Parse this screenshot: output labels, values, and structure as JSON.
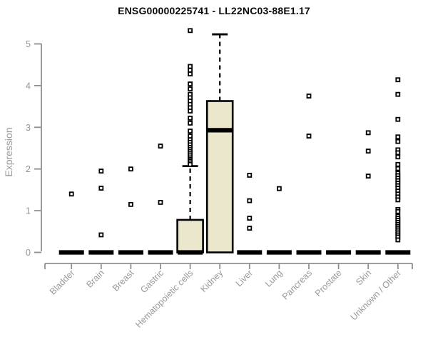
{
  "page": {
    "background": "#ffffff"
  },
  "colors": {
    "box_fill": "#ebe7cc",
    "ink": "#000000",
    "axis": "#8f8f8f",
    "tick_label": "#8f959c",
    "category_label": "#98989a",
    "title": "#0a0a0a",
    "ylabel": "#9a9a9a"
  },
  "chart_data": {
    "type": "boxplot",
    "title": "ENSG00000225741 - LL22NC03-88E1.17",
    "ylabel": "Expression",
    "xlabel": "",
    "ylim": [
      0,
      5.4
    ],
    "yticks": [
      0,
      1,
      2,
      3,
      4,
      5
    ],
    "grid": false,
    "legend": false,
    "categories": [
      "Bladder",
      "Brain",
      "Breast",
      "Gastric",
      "Hematopoietic cells",
      "Kidney",
      "Liver",
      "Lung",
      "Pancreas",
      "Prostate",
      "Skin",
      "Unknown / Other"
    ],
    "boxes": [
      {
        "category": "Bladder",
        "median": 0,
        "q1": 0,
        "q3": 0,
        "whisker_low": 0,
        "whisker_high": 0,
        "outliers": [
          1.4
        ]
      },
      {
        "category": "Brain",
        "median": 0,
        "q1": 0,
        "q3": 0,
        "whisker_low": 0,
        "whisker_high": 0,
        "outliers": [
          1.95,
          1.54,
          0.42
        ]
      },
      {
        "category": "Breast",
        "median": 0,
        "q1": 0,
        "q3": 0,
        "whisker_low": 0,
        "whisker_high": 0,
        "outliers": [
          2.0,
          1.15
        ]
      },
      {
        "category": "Gastric",
        "median": 0,
        "q1": 0,
        "q3": 0,
        "whisker_low": 0,
        "whisker_high": 0,
        "outliers": [
          2.55,
          1.2
        ]
      },
      {
        "category": "Hematopoietic cells",
        "median": 0,
        "q1": 0,
        "q3": 0.78,
        "whisker_low": 0,
        "whisker_high": 2.07,
        "outliers": [
          5.32,
          4.46,
          4.37,
          4.28,
          4.04,
          3.92,
          3.79,
          3.71,
          3.63,
          3.55,
          3.47,
          3.39,
          3.22,
          3.1,
          2.91,
          2.79,
          2.7,
          2.64,
          2.58,
          2.52,
          2.47,
          2.42,
          2.37,
          2.32,
          2.27,
          2.23,
          2.19,
          2.15,
          2.11
        ]
      },
      {
        "category": "Kidney",
        "median": 2.93,
        "q1": 0,
        "q3": 3.63,
        "whisker_low": 0,
        "whisker_high": 5.23,
        "outliers": []
      },
      {
        "category": "Liver",
        "median": 0,
        "q1": 0,
        "q3": 0,
        "whisker_low": 0,
        "whisker_high": 0,
        "outliers": [
          1.85,
          1.24,
          0.82,
          0.58
        ]
      },
      {
        "category": "Lung",
        "median": 0,
        "q1": 0,
        "q3": 0,
        "whisker_low": 0,
        "whisker_high": 0,
        "outliers": [
          1.53
        ]
      },
      {
        "category": "Pancreas",
        "median": 0,
        "q1": 0,
        "q3": 0,
        "whisker_low": 0,
        "whisker_high": 0,
        "outliers": [
          3.75,
          2.79
        ]
      },
      {
        "category": "Prostate",
        "median": 0,
        "q1": 0,
        "q3": 0,
        "whisker_low": 0,
        "whisker_high": 0,
        "outliers": []
      },
      {
        "category": "Skin",
        "median": 0,
        "q1": 0,
        "q3": 0,
        "whisker_low": 0,
        "whisker_high": 0,
        "outliers": [
          2.87,
          2.43,
          1.83
        ]
      },
      {
        "category": "Unknown / Other",
        "median": 0,
        "q1": 0,
        "q3": 0,
        "whisker_low": 0,
        "whisker_high": 0,
        "outliers": [
          4.14,
          3.79,
          3.19,
          2.77,
          2.66,
          2.46,
          2.39,
          2.29,
          2.11,
          2.01,
          1.9,
          1.84,
          1.78,
          1.72,
          1.66,
          1.6,
          1.54,
          1.47,
          1.4,
          1.33,
          1.26,
          1.03,
          0.98,
          0.87,
          0.82,
          0.77,
          0.72,
          0.67,
          0.62,
          0.57,
          0.52,
          0.47,
          0.42,
          0.37,
          0.3
        ]
      }
    ]
  }
}
